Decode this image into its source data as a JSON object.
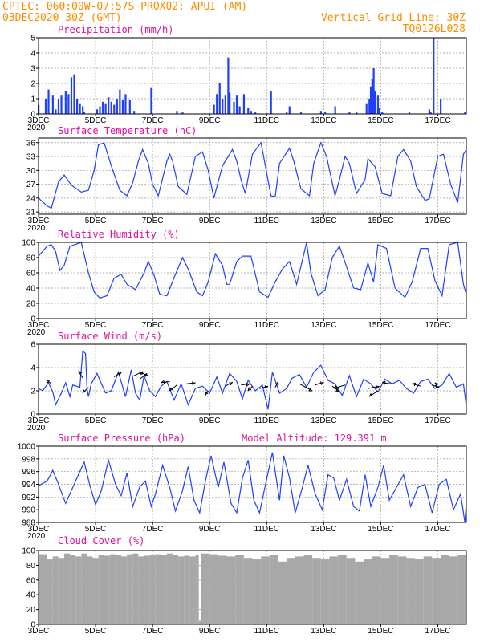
{
  "header": {
    "line1_left": "CPTEC:   060:00W-07:57S   PROX02: APUI (AM)",
    "line2_left": "03DEC2020 30Z (GMT)",
    "line2_right": "Vertical Grid Line: 30Z",
    "line3_right": "TQ0126L028"
  },
  "x_axis": {
    "start_day": 3,
    "end_day": 18,
    "tick_labels": [
      "3DEC",
      "5DEC",
      "7DEC",
      "9DEC",
      "11DEC",
      "13DEC",
      "15DEC",
      "17DEC"
    ],
    "year_label": "2020"
  },
  "colors": {
    "series": "#1f3fff",
    "arrow": "#000000",
    "cloud": "#a8a8a8",
    "title": "#e0109a",
    "header": "#ff8c00"
  },
  "chart_data": [
    {
      "type": "bar",
      "title": "Precipitation (mm/h)",
      "ylim": [
        0,
        5
      ],
      "yticks": [
        0,
        1,
        2,
        3,
        4,
        5
      ],
      "x": [
        3.0,
        3.25,
        3.35,
        3.5,
        3.6,
        3.7,
        3.8,
        3.95,
        4.05,
        4.15,
        4.25,
        4.35,
        4.45,
        4.55,
        4.6,
        5.05,
        5.15,
        5.25,
        5.35,
        5.45,
        5.55,
        5.65,
        5.75,
        5.85,
        5.95,
        6.05,
        6.2,
        6.35,
        6.95,
        7.85,
        8.05,
        9.15,
        9.25,
        9.35,
        9.45,
        9.55,
        9.65,
        9.7,
        9.85,
        9.95,
        10.05,
        10.2,
        10.35,
        10.45,
        10.6,
        11.15,
        11.7,
        11.8,
        12.2,
        12.9,
        13.05,
        13.4,
        13.9,
        14.15,
        14.5,
        14.6,
        14.65,
        14.7,
        14.75,
        14.8,
        14.9,
        14.95,
        15.05,
        16.0,
        16.7,
        16.75,
        16.85,
        17.1,
        17.95
      ],
      "values": [
        0.6,
        1.0,
        1.6,
        1.2,
        0.3,
        1.0,
        1.2,
        1.5,
        1.3,
        2.4,
        2.6,
        1.0,
        0.7,
        0.5,
        0.1,
        0.3,
        0.5,
        0.8,
        0.7,
        1.1,
        0.8,
        0.6,
        1.0,
        1.6,
        0.9,
        1.3,
        0.9,
        0.2,
        1.7,
        0.2,
        0.1,
        0.6,
        1.3,
        2.0,
        1.0,
        1.2,
        3.7,
        1.4,
        0.8,
        1.2,
        0.5,
        1.3,
        0.4,
        0.2,
        0.1,
        1.5,
        0.1,
        0.5,
        0.1,
        0.2,
        0.1,
        0.5,
        0.1,
        0.1,
        0.7,
        1.0,
        1.8,
        2.3,
        3.0,
        1.5,
        1.2,
        0.4,
        0.1,
        0.1,
        0.3,
        0.1,
        5.0,
        1.0,
        0.1
      ]
    },
    {
      "type": "line",
      "title": "Surface Temperature (nC)",
      "ylim": [
        20.5,
        37
      ],
      "yticks": [
        21,
        24,
        27,
        30,
        33,
        36
      ],
      "x": [
        3.0,
        3.3,
        3.45,
        3.7,
        3.9,
        4.15,
        4.5,
        4.75,
        4.95,
        5.1,
        5.3,
        5.55,
        5.85,
        6.1,
        6.3,
        6.5,
        6.65,
        6.85,
        7.0,
        7.2,
        7.5,
        7.6,
        7.7,
        7.9,
        8.2,
        8.5,
        8.75,
        8.95,
        9.15,
        9.45,
        9.8,
        9.95,
        10.1,
        10.25,
        10.5,
        10.8,
        11.15,
        11.3,
        11.45,
        11.8,
        11.95,
        12.2,
        12.5,
        12.65,
        12.9,
        13.1,
        13.4,
        13.55,
        13.75,
        13.9,
        14.15,
        14.45,
        14.55,
        14.8,
        15.05,
        15.35,
        15.6,
        15.8,
        16.05,
        16.25,
        16.55,
        16.7,
        17.0,
        17.2,
        17.45,
        17.7,
        17.9,
        18.0
      ],
      "values": [
        24,
        22.3,
        21.8,
        27.5,
        29,
        26.8,
        25.3,
        25.7,
        30,
        35.5,
        36,
        31,
        25.7,
        24.5,
        27.3,
        32,
        34.5,
        31.5,
        27,
        24.5,
        32,
        33.5,
        32,
        26.5,
        24.8,
        33,
        34,
        30,
        24,
        31,
        34.5,
        32,
        28,
        25,
        33.5,
        36,
        24.5,
        24.3,
        31.5,
        34.8,
        32,
        26,
        24.5,
        31.5,
        36,
        33,
        24.5,
        28,
        33,
        31.5,
        25,
        28,
        32.5,
        30.8,
        25,
        24.5,
        33,
        34.5,
        32,
        26.5,
        23.5,
        23.8,
        33,
        33.5,
        27,
        23,
        33.5,
        34.5
      ]
    },
    {
      "type": "line",
      "title": "Relative Humidity (%)",
      "ylim": [
        0,
        100
      ],
      "yticks": [
        0,
        20,
        40,
        60,
        80,
        100
      ],
      "x": [
        3.0,
        3.3,
        3.45,
        3.6,
        3.75,
        3.9,
        4.1,
        4.5,
        4.75,
        4.95,
        5.15,
        5.4,
        5.65,
        5.9,
        6.1,
        6.4,
        6.7,
        6.85,
        7.05,
        7.25,
        7.5,
        7.8,
        8.05,
        8.25,
        8.55,
        8.75,
        8.95,
        9.2,
        9.45,
        9.6,
        9.7,
        9.95,
        10.15,
        10.45,
        10.75,
        11.05,
        11.3,
        11.55,
        11.8,
        12.05,
        12.4,
        12.55,
        12.8,
        13.05,
        13.3,
        13.55,
        13.8,
        14.05,
        14.3,
        14.55,
        14.75,
        14.9,
        15.2,
        15.5,
        15.85,
        16.1,
        16.4,
        16.65,
        16.9,
        17.15,
        17.4,
        17.7,
        17.9,
        18.0
      ],
      "values": [
        82,
        95,
        97,
        88,
        63,
        70,
        95,
        100,
        60,
        35,
        27,
        30,
        53,
        58,
        45,
        38,
        60,
        75,
        57,
        32,
        30,
        58,
        80,
        65,
        35,
        30,
        48,
        85,
        70,
        45,
        45,
        75,
        82,
        82,
        35,
        28,
        48,
        65,
        75,
        45,
        100,
        60,
        30,
        38,
        80,
        95,
        68,
        40,
        38,
        73,
        48,
        97,
        92,
        40,
        28,
        48,
        92,
        92,
        50,
        30,
        97,
        100,
        45,
        32
      ]
    },
    {
      "type": "line",
      "title": "Surface Wind (m/s)",
      "ylim": [
        0,
        6
      ],
      "yticks": [
        0,
        2,
        4,
        6
      ],
      "x": [
        3.0,
        3.15,
        3.35,
        3.5,
        3.6,
        3.8,
        3.95,
        4.1,
        4.2,
        4.45,
        4.55,
        4.65,
        4.7,
        4.75,
        4.85,
        5.05,
        5.35,
        5.55,
        5.8,
        6.05,
        6.25,
        6.4,
        6.55,
        6.7,
        6.9,
        7.1,
        7.3,
        7.5,
        7.75,
        8.0,
        8.25,
        8.5,
        8.75,
        9.0,
        9.25,
        9.45,
        9.7,
        9.95,
        10.15,
        10.35,
        10.6,
        10.85,
        11.05,
        11.2,
        11.45,
        11.7,
        11.9,
        12.15,
        12.4,
        12.65,
        12.9,
        13.15,
        13.4,
        13.65,
        13.9,
        14.15,
        14.4,
        14.65,
        14.9,
        15.15,
        15.4,
        15.65,
        15.9,
        16.15,
        16.4,
        16.65,
        16.9,
        17.15,
        17.4,
        17.65,
        17.9,
        18.0
      ],
      "values": [
        2.2,
        2.0,
        2.7,
        1.9,
        0.8,
        1.8,
        2.7,
        1.5,
        2.5,
        2.3,
        5.4,
        5.2,
        2.2,
        1.5,
        2.6,
        3.5,
        1.8,
        2.0,
        3.6,
        1.5,
        3.8,
        1.8,
        1.2,
        3.3,
        2.0,
        1.5,
        2.4,
        2.8,
        1.2,
        2.6,
        0.8,
        2.2,
        2.4,
        1.8,
        3.2,
        1.8,
        3.5,
        2.8,
        1.3,
        2.9,
        2.0,
        2.5,
        0.4,
        3.6,
        1.8,
        2.2,
        3.1,
        3.4,
        2.3,
        3.6,
        4.2,
        2.9,
        2.6,
        1.6,
        3.3,
        1.5,
        3.0,
        2.6,
        1.9,
        3.0,
        2.6,
        2.9,
        2.2,
        1.8,
        2.8,
        3.0,
        2.2,
        2.5,
        3.5,
        2.3,
        2.6,
        0.7
      ]
    },
    {
      "type": "line",
      "title": "Surface Pressure (hPa)",
      "annotation": "Model Altitude: 129.391 m",
      "ylim": [
        988,
        1000
      ],
      "yticks": [
        988,
        990,
        992,
        994,
        996,
        998,
        1000
      ],
      "x": [
        3.0,
        3.3,
        3.5,
        3.7,
        3.95,
        4.2,
        4.4,
        4.6,
        4.8,
        5.0,
        5.2,
        5.45,
        5.7,
        5.9,
        6.1,
        6.3,
        6.55,
        6.75,
        6.95,
        7.1,
        7.35,
        7.6,
        7.8,
        8.05,
        8.25,
        8.45,
        8.65,
        8.85,
        9.05,
        9.3,
        9.5,
        9.75,
        9.95,
        10.15,
        10.35,
        10.55,
        10.75,
        10.95,
        11.2,
        11.45,
        11.6,
        11.8,
        12.0,
        12.25,
        12.45,
        12.7,
        12.95,
        13.15,
        13.35,
        13.55,
        13.8,
        14.05,
        14.25,
        14.45,
        14.65,
        14.9,
        15.1,
        15.3,
        15.55,
        15.8,
        16.05,
        16.3,
        16.55,
        16.8,
        17.05,
        17.3,
        17.55,
        17.8,
        17.95,
        18.0
      ],
      "values": [
        993.8,
        994.5,
        996.2,
        994,
        991,
        993.5,
        995.5,
        997.5,
        993.8,
        990.8,
        993,
        997.8,
        994,
        992.2,
        995.8,
        990.5,
        993.6,
        994.5,
        990.5,
        992.5,
        997,
        993.5,
        989.8,
        993,
        996.8,
        991.5,
        989.5,
        994.5,
        998.5,
        993.5,
        997.5,
        991,
        989.5,
        995,
        997.8,
        991.5,
        989.5,
        993.8,
        999,
        991.5,
        998.5,
        995,
        989.5,
        993.5,
        997,
        992.5,
        990,
        995.5,
        995,
        991.5,
        994.8,
        990.5,
        989.8,
        995.5,
        990.5,
        993.5,
        997,
        991.5,
        993.5,
        995.5,
        990.5,
        993.5,
        994,
        989.5,
        994,
        994.8,
        990,
        992.5,
        988,
        991
      ]
    },
    {
      "type": "bar",
      "title": "Cloud Cover (%)",
      "ylim": [
        0,
        100
      ],
      "yticks": [
        0,
        20,
        40,
        60,
        80,
        100
      ],
      "x": [
        3.0,
        3.3,
        3.5,
        3.7,
        3.9,
        4.1,
        4.3,
        4.5,
        4.7,
        4.9,
        5.1,
        5.3,
        5.5,
        5.7,
        5.9,
        6.1,
        6.3,
        6.5,
        6.7,
        6.9,
        7.1,
        7.3,
        7.5,
        7.7,
        7.9,
        8.1,
        8.3,
        8.5,
        8.62,
        8.7,
        9.0,
        9.3,
        9.6,
        9.9,
        10.2,
        10.5,
        10.8,
        11.1,
        11.4,
        11.7,
        12.0,
        12.3,
        12.6,
        12.9,
        13.2,
        13.5,
        13.8,
        14.1,
        14.4,
        14.7,
        15.0,
        15.3,
        15.6,
        15.9,
        16.2,
        16.5,
        16.8,
        17.1,
        17.4,
        17.7,
        18.0
      ],
      "values": [
        95,
        88,
        92,
        90,
        96,
        94,
        92,
        96,
        92,
        90,
        94,
        93,
        95,
        94,
        92,
        95,
        96,
        92,
        93,
        94,
        95,
        94,
        96,
        94,
        92,
        93,
        92,
        94,
        5,
        96,
        95,
        93,
        92,
        94,
        90,
        88,
        92,
        94,
        85,
        90,
        92,
        94,
        90,
        88,
        92,
        94,
        90,
        85,
        88,
        92,
        90,
        94,
        92,
        90,
        88,
        92,
        90,
        94,
        92,
        94,
        95
      ]
    }
  ],
  "wind_arrows": {
    "description": "direction barbs",
    "items": [
      {
        "x": 3.45,
        "y": 2.6,
        "dx": -0.18,
        "dy": 0.35
      },
      {
        "x": 4.55,
        "y": 3.1,
        "dx": -0.15,
        "dy": 0.6
      },
      {
        "x": 4.75,
        "y": 2.3,
        "dx": -0.2,
        "dy": -0.5
      },
      {
        "x": 5.65,
        "y": 3.2,
        "dx": 0.25,
        "dy": 0.4
      },
      {
        "x": 6.35,
        "y": 3.3,
        "dx": 0.3,
        "dy": 0.35
      },
      {
        "x": 6.55,
        "y": 3.0,
        "dx": 0.25,
        "dy": 0.5
      },
      {
        "x": 6.85,
        "y": 3.3,
        "dx": -0.3,
        "dy": 0.3
      },
      {
        "x": 7.6,
        "y": 2.8,
        "dx": -0.3,
        "dy": -0.1
      },
      {
        "x": 7.85,
        "y": 2.5,
        "dx": -0.25,
        "dy": -0.5
      },
      {
        "x": 8.2,
        "y": 2.6,
        "dx": 0.3,
        "dy": 0.1
      },
      {
        "x": 8.95,
        "y": 2.0,
        "dx": -0.1,
        "dy": -0.4
      },
      {
        "x": 9.55,
        "y": 2.4,
        "dx": 0.25,
        "dy": 0.35
      },
      {
        "x": 10.1,
        "y": 2.5,
        "dx": 0.3,
        "dy": 0.1
      },
      {
        "x": 10.5,
        "y": 2.4,
        "dx": -0.15,
        "dy": -0.4
      },
      {
        "x": 10.75,
        "y": 2.2,
        "dx": 0.3,
        "dy": 0.2
      },
      {
        "x": 11.3,
        "y": 2.3,
        "dx": 0.1,
        "dy": 0.5
      },
      {
        "x": 12.15,
        "y": 2.6,
        "dx": 0.45,
        "dy": -0.6
      },
      {
        "x": 12.7,
        "y": 2.5,
        "dx": 0.3,
        "dy": 0.25
      },
      {
        "x": 13.3,
        "y": 2.4,
        "dx": 0.25,
        "dy": -0.45
      },
      {
        "x": 13.75,
        "y": 2.5,
        "dx": -0.4,
        "dy": -0.3
      },
      {
        "x": 14.55,
        "y": 2.2,
        "dx": 0.4,
        "dy": 0.2
      },
      {
        "x": 14.9,
        "y": 2.0,
        "dx": -0.3,
        "dy": -0.5
      },
      {
        "x": 15.35,
        "y": 2.6,
        "dx": -0.3,
        "dy": 0.1
      },
      {
        "x": 16.4,
        "y": 2.4,
        "dx": -0.3,
        "dy": 0.2
      },
      {
        "x": 16.8,
        "y": 2.5,
        "dx": 0.25,
        "dy": -0.2
      },
      {
        "x": 17.0,
        "y": 2.3,
        "dx": -0.1,
        "dy": 0.4
      }
    ]
  }
}
